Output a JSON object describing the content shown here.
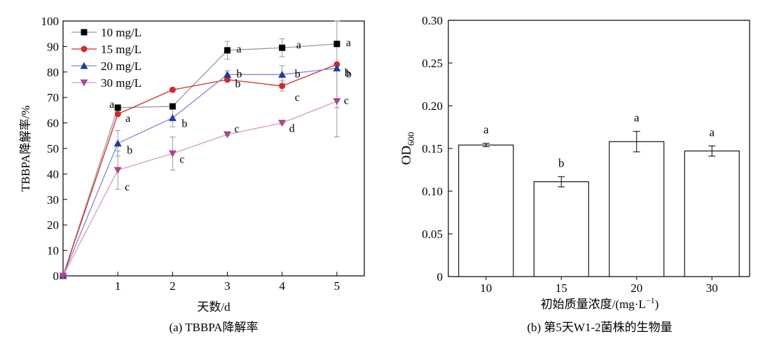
{
  "colors": {
    "axis": "#000000",
    "s10": "#000000",
    "line10": "#9a9a9a",
    "s15": "#d62828",
    "line15": "#d62828",
    "s20": "#1f3b9e",
    "line20": "#7f88d0",
    "s30": "#a64a8f",
    "line30": "#d59abf",
    "errbar": "#9a9a9a",
    "bar_fill": "#ffffff"
  },
  "chart_data": [
    {
      "type": "line",
      "caption": "(a) TBBPA降解率",
      "xlabel": "天数/d",
      "ylabel": "TBBPA降解率/%",
      "x": [
        0,
        1,
        2,
        3,
        4,
        5
      ],
      "xticks": [
        "1",
        "2",
        "3",
        "4",
        "5"
      ],
      "xlim": [
        0,
        5.5
      ],
      "ylim": [
        0,
        100
      ],
      "yticks": [
        "0",
        "10",
        "20",
        "30",
        "40",
        "50",
        "60",
        "70",
        "80",
        "90",
        "100"
      ],
      "legend_position": "top-left",
      "series": [
        {
          "name": "10 mg/L",
          "marker": "square",
          "color_key": "s10",
          "line_key": "line10",
          "values": [
            0,
            66,
            66.5,
            88.5,
            89.5,
            91
          ],
          "errors": [
            0,
            1,
            0.5,
            3.5,
            3.5,
            0.5
          ],
          "letters": [
            "",
            "a",
            "",
            "a",
            "a",
            "a"
          ]
        },
        {
          "name": "15 mg/L",
          "marker": "circle",
          "color_key": "s15",
          "line_key": "line15",
          "values": [
            0,
            63.5,
            73,
            77,
            74.5,
            83
          ],
          "errors": [
            0,
            0.5,
            0.5,
            0.5,
            2,
            17
          ],
          "letters": [
            "",
            "a",
            "",
            "b",
            "c",
            "b"
          ]
        },
        {
          "name": "20 mg/L",
          "marker": "triangle-up",
          "color_key": "s20",
          "line_key": "line20",
          "values": [
            0,
            52,
            62,
            79,
            79,
            81.5
          ],
          "errors": [
            0,
            5,
            3.5,
            1.5,
            3.5,
            1
          ],
          "letters": [
            "",
            "b",
            "b",
            "b",
            "b",
            "b"
          ]
        },
        {
          "name": "30 mg/L",
          "marker": "triangle-down",
          "color_key": "s30",
          "line_key": "line30",
          "values": [
            0,
            41.5,
            48,
            55.5,
            60,
            68.5
          ],
          "errors": [
            0,
            7.5,
            6.5,
            0.5,
            0.5,
            14
          ],
          "letters": [
            "",
            "c",
            "c",
            "c",
            "d",
            "c"
          ]
        }
      ]
    },
    {
      "type": "bar",
      "caption": "(b) 第5天W1-2菌株的生物量",
      "xlabel": "初始质量浓度/(mg·L",
      "xlabel_sup": "−1",
      "xlabel_end": ")",
      "ylabel": "OD",
      "ylabel_sub": "600",
      "categories": [
        "10",
        "15",
        "20",
        "30"
      ],
      "values": [
        0.154,
        0.111,
        0.158,
        0.147
      ],
      "errors": [
        0.002,
        0.006,
        0.012,
        0.006
      ],
      "letters": [
        "a",
        "b",
        "a",
        "a"
      ],
      "ylim": [
        0,
        0.3
      ],
      "yticks": [
        "0",
        "0.05",
        "0.10",
        "0.15",
        "0.20",
        "0.25",
        "0.30"
      ]
    }
  ]
}
